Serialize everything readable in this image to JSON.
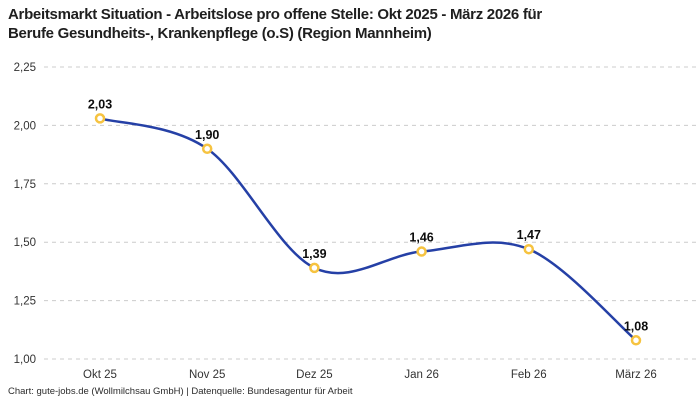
{
  "header": {
    "title_line1": "Arbeitsmarkt Situation - Arbeitslose pro offene Stelle: Okt 2025 - März 2026 für",
    "title_line2": "Berufe Gesundheits-, Krankenpflege (o.S) (Region Mannheim)"
  },
  "footer": {
    "credit": "Chart: gute-jobs.de (Wollmilchsau GmbH) | Datenquelle: Bundesagentur für Arbeit"
  },
  "chart_data": {
    "type": "line",
    "title": "Arbeitsmarkt Situation - Arbeitslose pro offene Stelle: Okt 2025 - März 2026 für Berufe Gesundheits-, Krankenpflege (o.S) (Region Mannheim)",
    "categories": [
      "Okt 25",
      "Nov 25",
      "Dez 25",
      "Jan 26",
      "Feb 26",
      "März 26"
    ],
    "values": [
      2.03,
      1.9,
      1.39,
      1.46,
      1.47,
      1.08
    ],
    "point_labels": [
      "2,03",
      "1,90",
      "1,39",
      "1,46",
      "1,47",
      "1,08"
    ],
    "y_ticks": [
      {
        "value": 2.25,
        "label": "2,25"
      },
      {
        "value": 2.0,
        "label": "2,00"
      },
      {
        "value": 1.75,
        "label": "1,75"
      },
      {
        "value": 1.5,
        "label": "1,50"
      },
      {
        "value": 1.25,
        "label": "1,25"
      },
      {
        "value": 1.0,
        "label": "1,00"
      }
    ],
    "ylim": [
      1.0,
      2.25
    ],
    "xlabel": "",
    "ylabel": "",
    "grid": "horizontal-dashed",
    "legend": "none",
    "line_style": "smooth-spline",
    "colors": {
      "line": "#2540a6",
      "marker_ring": "#f6c340",
      "marker_fill": "#ffffff",
      "gridline": "#cccccc",
      "tick_text": "#333333",
      "point_label_text": "#0d0d0d"
    }
  }
}
